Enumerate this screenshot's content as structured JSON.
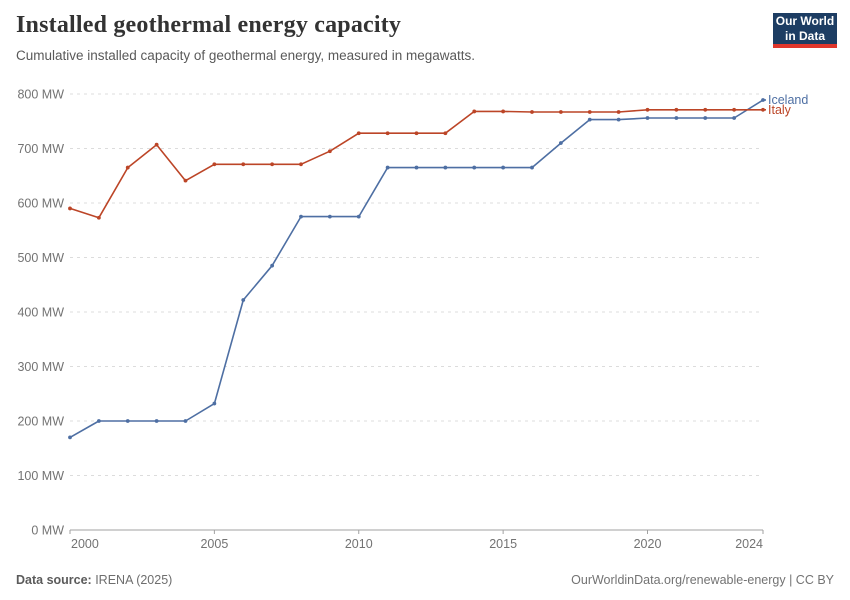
{
  "header": {
    "title": "Installed geothermal energy capacity",
    "subtitle": "Cumulative installed capacity of geothermal energy, measured in megawatts."
  },
  "logo": {
    "line1": "Our World",
    "line2": "in Data",
    "bg_color": "#1d3d63",
    "accent_color": "#e0362c"
  },
  "chart_data": {
    "type": "line",
    "title": "Installed geothermal energy capacity",
    "xlabel": "",
    "ylabel": "",
    "unit": "MW",
    "xlim": [
      2000,
      2024
    ],
    "ylim": [
      0,
      800
    ],
    "grid": "dashed-horizontal",
    "legend_position": "right-end-labels",
    "x": [
      2000,
      2001,
      2002,
      2003,
      2004,
      2005,
      2006,
      2007,
      2008,
      2009,
      2010,
      2011,
      2012,
      2013,
      2014,
      2015,
      2016,
      2017,
      2018,
      2019,
      2020,
      2021,
      2022,
      2023,
      2024
    ],
    "xticks": [
      2000,
      2005,
      2010,
      2015,
      2020,
      2024
    ],
    "yticks": [
      0,
      100,
      200,
      300,
      400,
      500,
      600,
      700,
      800
    ],
    "ytick_suffix": " MW",
    "series": [
      {
        "name": "Iceland",
        "color": "#4e6fa3",
        "values": [
          170,
          200,
          200,
          200,
          200,
          232,
          422,
          485,
          575,
          575,
          575,
          665,
          665,
          665,
          665,
          665,
          665,
          710,
          753,
          753,
          756,
          756,
          756,
          756,
          789
        ]
      },
      {
        "name": "Italy",
        "color": "#bc4527",
        "values": [
          590,
          573,
          665,
          707,
          641,
          671,
          671,
          671,
          671,
          695,
          728,
          728,
          728,
          728,
          768,
          768,
          767,
          767,
          767,
          767,
          771,
          771,
          771,
          771,
          771
        ]
      }
    ]
  },
  "footer": {
    "source_label": "Data source:",
    "source_value": " IRENA (2025)",
    "right": "OurWorldinData.org/renewable-energy | CC BY"
  }
}
